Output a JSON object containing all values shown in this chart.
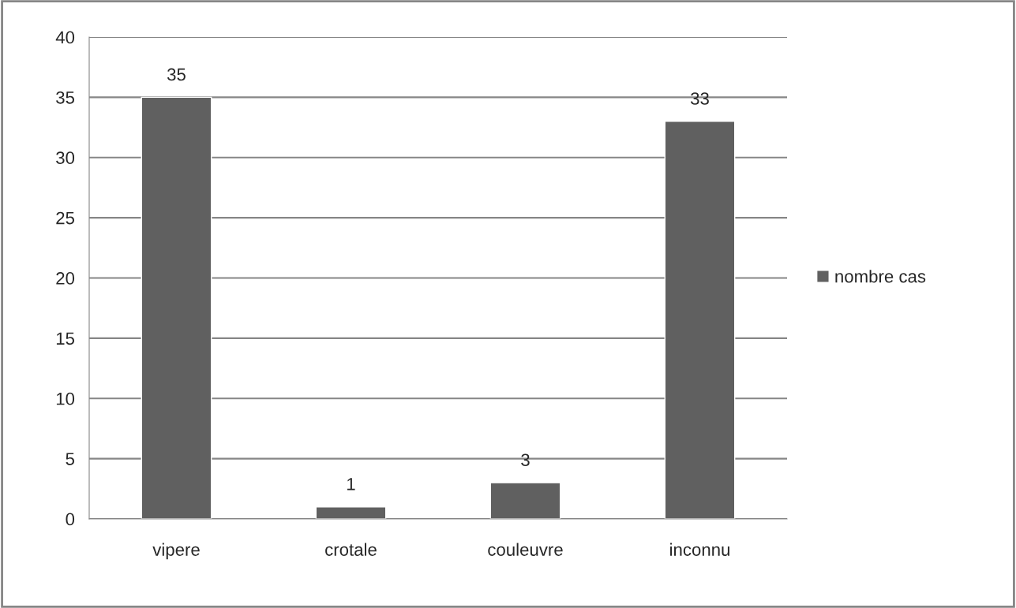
{
  "chart_data": {
    "type": "bar",
    "categories": [
      "vipere",
      "crotale",
      "couleuvre",
      "inconnu"
    ],
    "series": [
      {
        "name": "nombre cas",
        "color": "#606060",
        "values": [
          35,
          1,
          3,
          33
        ]
      }
    ],
    "ylim": [
      0,
      40
    ],
    "yticks": [
      0,
      5,
      10,
      15,
      20,
      25,
      30,
      35,
      40
    ],
    "grid": "y",
    "legend": "right",
    "data_labels": true
  }
}
